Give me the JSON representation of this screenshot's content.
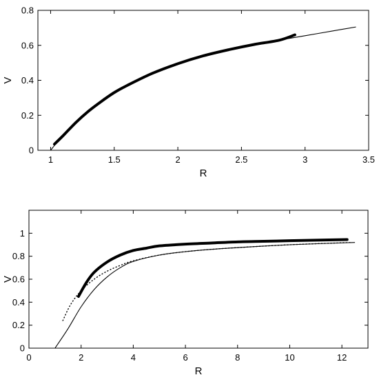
{
  "chart_data": [
    {
      "type": "line",
      "xlabel": "R",
      "ylabel": "V",
      "xlim": [
        0.9,
        3.5
      ],
      "ylim": [
        0,
        0.8
      ],
      "xticks": [
        1,
        1.5,
        2,
        2.5,
        3,
        3.5
      ],
      "yticks": [
        0,
        0.2,
        0.4,
        0.6,
        0.8
      ],
      "xtick_labels": [
        "1",
        "1.5",
        "2",
        "2.5",
        "3",
        "3.5"
      ],
      "ytick_labels": [
        "0",
        "0.2",
        "0.4",
        "0.6",
        "0.8"
      ],
      "grid": false,
      "series": [
        {
          "style": "thin-solid",
          "color": "#000000",
          "x": [
            1.0,
            1.05,
            1.1,
            1.2,
            1.3,
            1.4,
            1.5,
            1.6,
            1.8,
            2.0,
            2.2,
            2.4,
            2.6,
            2.8,
            3.0,
            3.2,
            3.4
          ],
          "y": [
            0.0,
            0.045,
            0.085,
            0.16,
            0.225,
            0.28,
            0.33,
            0.37,
            0.44,
            0.495,
            0.54,
            0.575,
            0.605,
            0.63,
            0.655,
            0.68,
            0.705
          ]
        },
        {
          "style": "thick-solid",
          "color": "#000000",
          "x": [
            1.03,
            1.1,
            1.2,
            1.3,
            1.4,
            1.5,
            1.6,
            1.8,
            2.0,
            2.2,
            2.4,
            2.6,
            2.8,
            2.92
          ],
          "y": [
            0.035,
            0.085,
            0.16,
            0.225,
            0.28,
            0.33,
            0.37,
            0.44,
            0.495,
            0.54,
            0.575,
            0.605,
            0.63,
            0.66
          ]
        }
      ]
    },
    {
      "type": "line",
      "xlabel": "R",
      "ylabel": "V",
      "xlim": [
        0,
        13
      ],
      "ylim": [
        0,
        1.2
      ],
      "xticks": [
        0,
        2,
        4,
        6,
        8,
        10,
        12
      ],
      "yticks": [
        0,
        0.2,
        0.4,
        0.6,
        0.8,
        1
      ],
      "xtick_labels": [
        "0",
        "2",
        "4",
        "6",
        "8",
        "10",
        "12"
      ],
      "ytick_labels": [
        "0",
        "0.2",
        "0.4",
        "0.6",
        "0.8",
        "1"
      ],
      "grid": false,
      "series": [
        {
          "style": "thin-solid",
          "color": "#000000",
          "x": [
            1.0,
            1.5,
            2.0,
            2.5,
            3.0,
            3.5,
            4.0,
            5.0,
            6.0,
            7.0,
            8.0,
            10.0,
            12.5
          ],
          "y": [
            0.0,
            0.17,
            0.36,
            0.51,
            0.62,
            0.7,
            0.755,
            0.81,
            0.84,
            0.86,
            0.875,
            0.9,
            0.92
          ]
        },
        {
          "style": "dotted",
          "color": "#000000",
          "x": [
            1.3,
            1.6,
            2.0,
            2.5,
            3.0,
            3.5,
            4.0,
            5.0,
            6.0,
            7.0,
            8.0,
            10.0,
            12.4
          ],
          "y": [
            0.24,
            0.38,
            0.5,
            0.6,
            0.67,
            0.72,
            0.76,
            0.81,
            0.84,
            0.86,
            0.875,
            0.9,
            0.92
          ]
        },
        {
          "style": "thick-solid",
          "color": "#000000",
          "x": [
            1.9,
            2.2,
            2.5,
            3.0,
            3.5,
            4.0,
            4.5,
            5.0,
            6.0,
            7.0,
            8.0,
            9.0,
            10.0,
            11.0,
            12.2
          ],
          "y": [
            0.45,
            0.57,
            0.66,
            0.75,
            0.81,
            0.85,
            0.87,
            0.89,
            0.905,
            0.915,
            0.925,
            0.93,
            0.935,
            0.94,
            0.945
          ]
        }
      ]
    }
  ]
}
